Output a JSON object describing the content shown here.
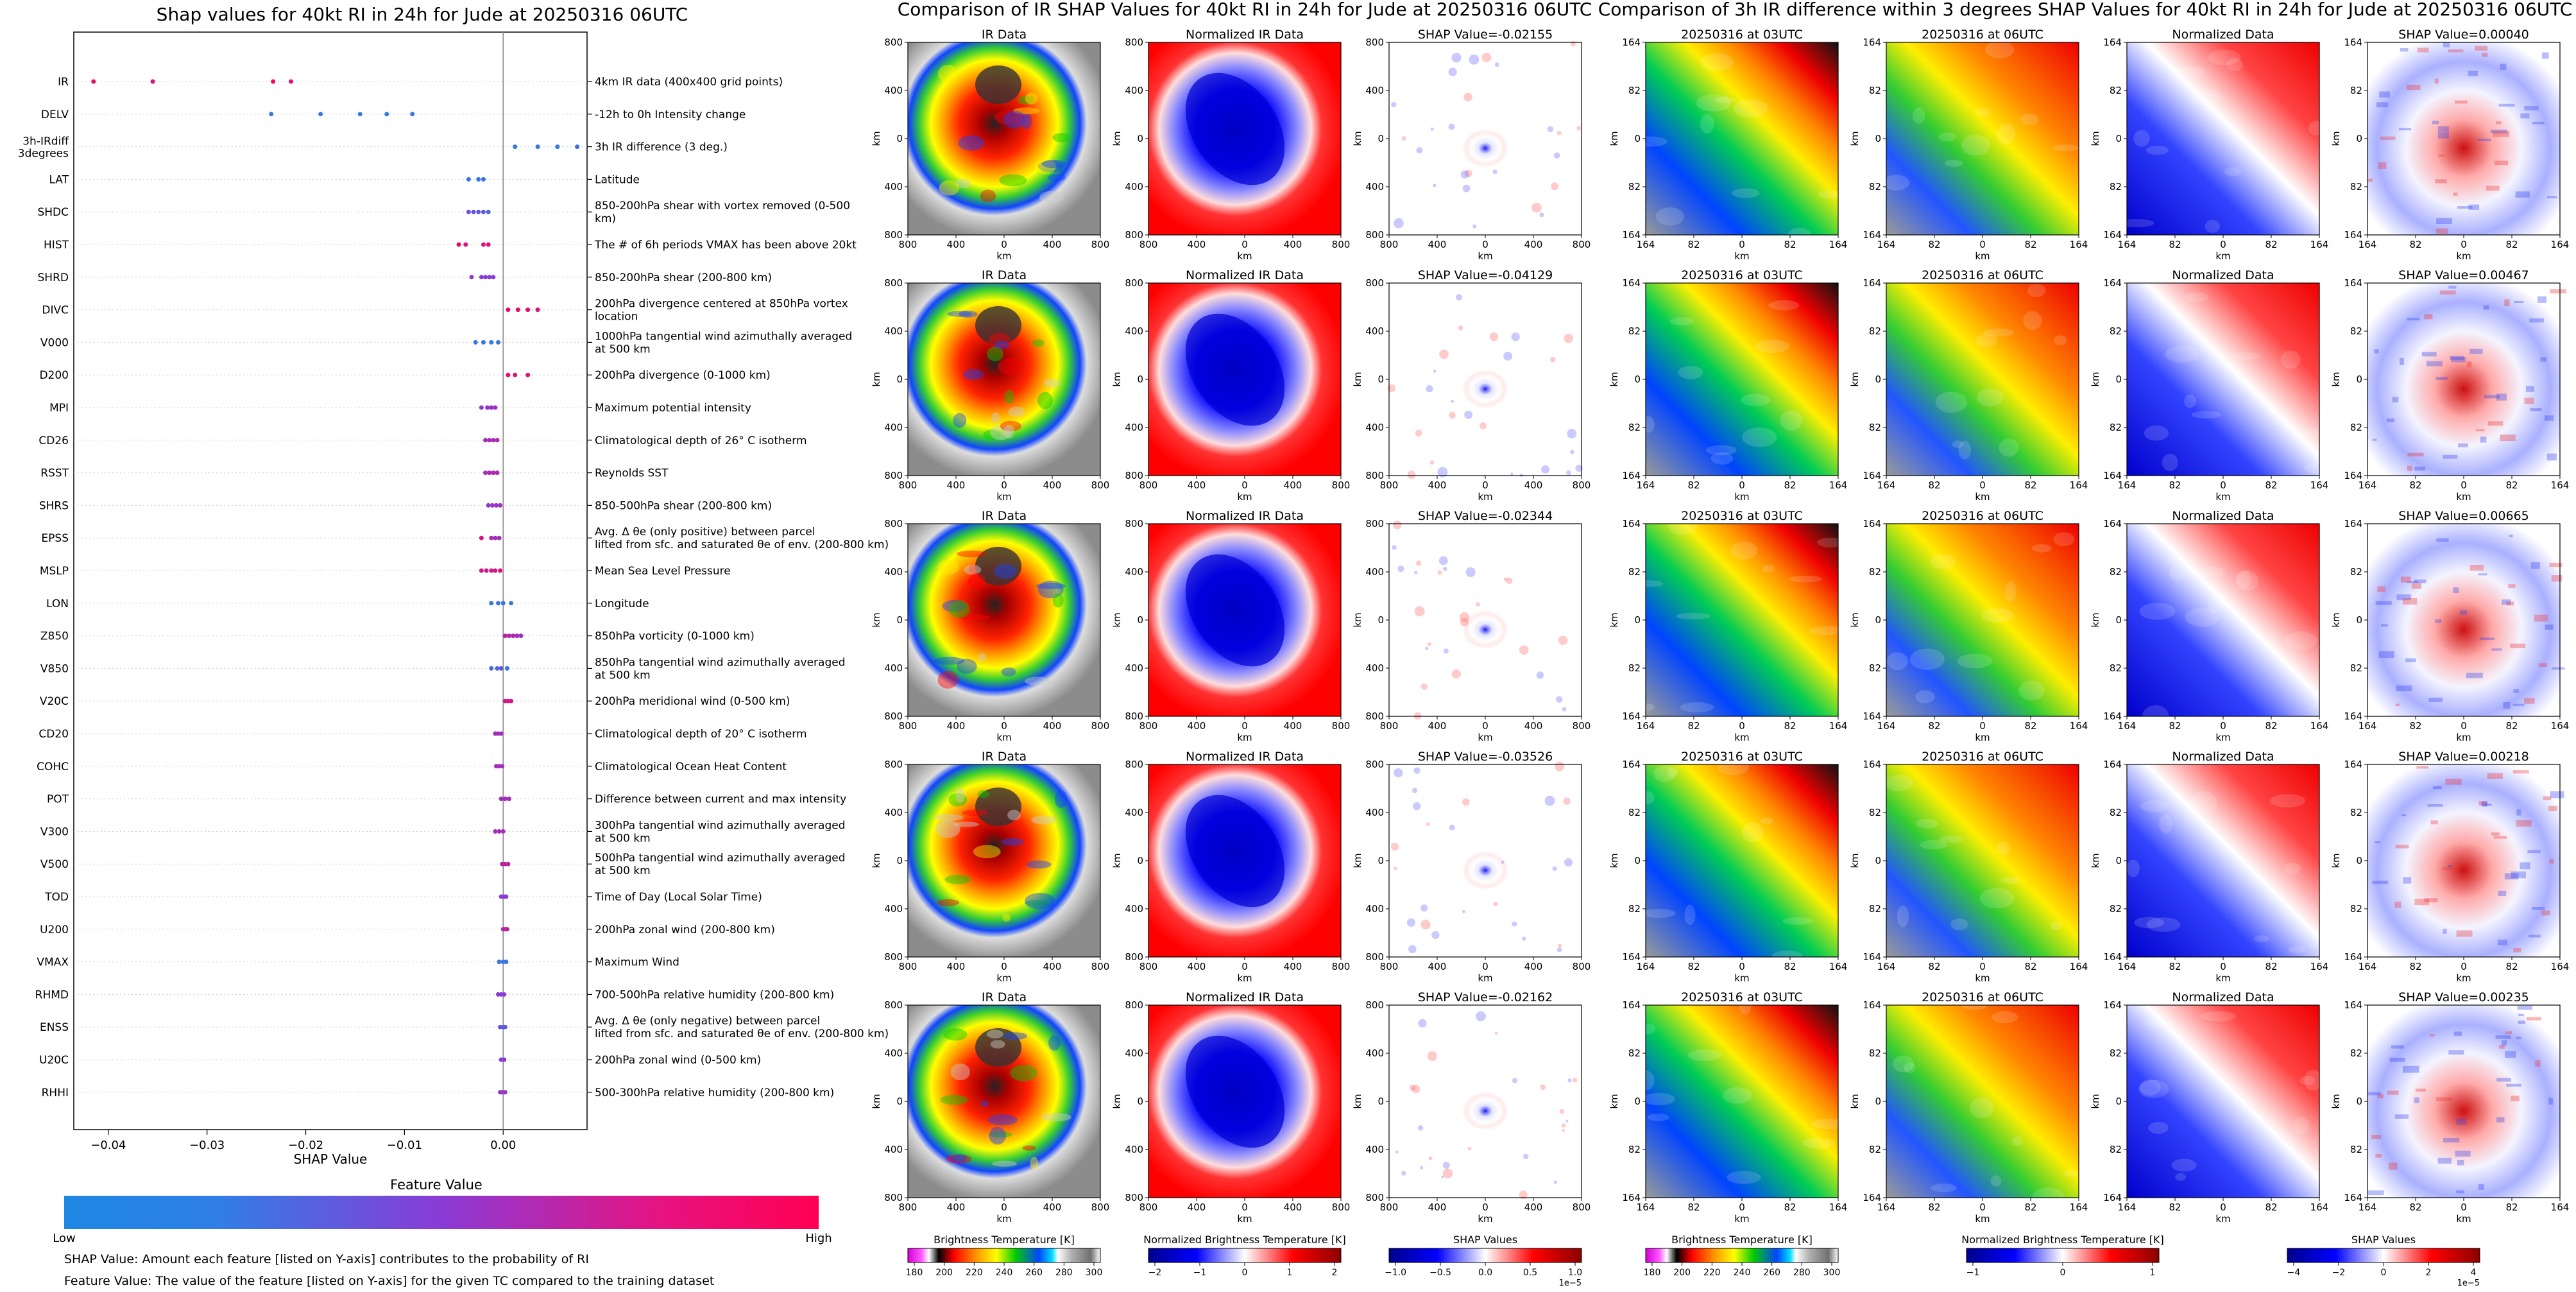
{
  "colors": {
    "feature_low": "#1e88e5",
    "feature_high": "#ff0052",
    "zero_line": "#888888",
    "ir_stops": [
      "#d400d4",
      "#ffffff",
      "#000000",
      "#ff0000",
      "#ff9900",
      "#ffff00",
      "#00cc00",
      "#0044ff",
      "#ffffff",
      "#9a9a9a",
      "#ffffff"
    ],
    "norm_stops": [
      "#00008c",
      "#0000ff",
      "#ffffff",
      "#ff0000",
      "#8c0000"
    ],
    "shap_stops": [
      "#00008c",
      "#0000ff",
      "#ffffff",
      "#ff0000",
      "#8c0000"
    ]
  },
  "left_panel": {
    "title": "Shap values for 40kt RI in 24h for Jude at 20250316 06UTC",
    "xlabel": "SHAP Value",
    "colorbar_title": "Feature Value",
    "colorbar_low": "Low",
    "colorbar_high": "High",
    "note1": "SHAP Value: Amount each feature [listed on Y-axis] contributes to the probability of RI",
    "note2": "Feature Value: The value of the feature [listed on Y-axis] for the given TC compared to the training dataset"
  },
  "chart_data": [
    {
      "type": "scatter",
      "title": "Shap values for 40kt RI in 24h for Jude at 20250316 06UTC",
      "xlabel": "SHAP Value",
      "xlim": [
        -0.0435,
        0.0085
      ],
      "xticks": [
        -0.04,
        -0.03,
        -0.02,
        -0.01,
        0.0
      ],
      "xticklabels": [
        "−0.04",
        "−0.03",
        "−0.02",
        "−0.01",
        "0.00"
      ],
      "colorbar": {
        "label": "Feature Value",
        "low": "Low",
        "high": "High"
      },
      "features": [
        {
          "code": "IR",
          "desc": "4km IR data (400x400 grid points)",
          "points": [
            [
              -0.0415,
              0.9
            ],
            [
              -0.0355,
              0.85
            ],
            [
              -0.0233,
              0.95
            ],
            [
              -0.0215,
              0.9
            ]
          ]
        },
        {
          "code": "DELV",
          "desc": "-12h to 0h Intensity change",
          "points": [
            [
              -0.0235,
              0.1
            ],
            [
              -0.0185,
              0.1
            ],
            [
              -0.0145,
              0.1
            ],
            [
              -0.0118,
              0.1
            ],
            [
              -0.0092,
              0.1
            ]
          ]
        },
        {
          "code": "3h-IRdiff 3degrees",
          "desc": "3h IR difference (3 deg.)",
          "points": [
            [
              0.0012,
              0.1
            ],
            [
              0.0035,
              0.1
            ],
            [
              0.0055,
              0.1
            ],
            [
              0.0075,
              0.15
            ]
          ]
        },
        {
          "code": "LAT",
          "desc": "Latitude",
          "points": [
            [
              -0.0035,
              0.1
            ],
            [
              -0.0025,
              0.1
            ],
            [
              -0.002,
              0.15
            ]
          ]
        },
        {
          "code": "SHDC",
          "desc": "850-200hPa shear with vortex removed (0-500 km)",
          "points": [
            [
              -0.0035,
              0.35
            ],
            [
              -0.003,
              0.35
            ],
            [
              -0.0025,
              0.3
            ],
            [
              -0.002,
              0.3
            ],
            [
              -0.0015,
              0.25
            ]
          ]
        },
        {
          "code": "HIST",
          "desc": "The # of 6h periods VMAX has been above 20kt",
          "points": [
            [
              -0.0045,
              0.9
            ],
            [
              -0.0038,
              0.85
            ],
            [
              -0.002,
              0.85
            ],
            [
              -0.0015,
              0.85
            ]
          ]
        },
        {
          "code": "SHRD",
          "desc": "850-200hPa shear (200-800 km)",
          "points": [
            [
              -0.0032,
              0.55
            ],
            [
              -0.0022,
              0.5
            ],
            [
              -0.0018,
              0.5
            ],
            [
              -0.0014,
              0.5
            ],
            [
              -0.001,
              0.5
            ]
          ]
        },
        {
          "code": "DIVC",
          "desc": "200hPa divergence centered at 850hPa vortex location",
          "points": [
            [
              0.0005,
              0.9
            ],
            [
              0.0015,
              0.9
            ],
            [
              0.0025,
              0.9
            ],
            [
              0.0035,
              0.85
            ]
          ]
        },
        {
          "code": "V000",
          "desc": "1000hPa tangential wind azimuthally averaged at 500 km",
          "points": [
            [
              -0.0028,
              0.1
            ],
            [
              -0.002,
              0.1
            ],
            [
              -0.0012,
              0.1
            ],
            [
              -0.0005,
              0.1
            ]
          ]
        },
        {
          "code": "D200",
          "desc": "200hPa divergence (0-1000 km)",
          "points": [
            [
              0.0005,
              0.9
            ],
            [
              0.0012,
              0.85
            ],
            [
              0.0025,
              0.85
            ]
          ]
        },
        {
          "code": "MPI",
          "desc": "Maximum potential intensity",
          "points": [
            [
              -0.0022,
              0.5
            ],
            [
              -0.0016,
              0.55
            ],
            [
              -0.0012,
              0.55
            ],
            [
              -0.0008,
              0.6
            ]
          ]
        },
        {
          "code": "CD26",
          "desc": "Climatological depth of 26° C isotherm",
          "points": [
            [
              -0.0018,
              0.6
            ],
            [
              -0.0014,
              0.6
            ],
            [
              -0.001,
              0.65
            ],
            [
              -0.0006,
              0.65
            ]
          ]
        },
        {
          "code": "RSST",
          "desc": "Reynolds SST",
          "points": [
            [
              -0.0018,
              0.6
            ],
            [
              -0.0014,
              0.6
            ],
            [
              -0.001,
              0.65
            ],
            [
              -0.0006,
              0.65
            ]
          ]
        },
        {
          "code": "SHRS",
          "desc": "850-500hPa shear (200-800 km)",
          "points": [
            [
              -0.0015,
              0.55
            ],
            [
              -0.0011,
              0.55
            ],
            [
              -0.0007,
              0.55
            ],
            [
              -0.0003,
              0.6
            ]
          ]
        },
        {
          "code": "EPSS",
          "desc": "Avg. Δ θe (only positive) between parcel lifted from sfc. and saturated θe of env. (200-800 km)",
          "points": [
            [
              -0.0022,
              0.85
            ],
            [
              -0.0012,
              0.6
            ],
            [
              -0.0008,
              0.6
            ],
            [
              -0.0004,
              0.6
            ]
          ]
        },
        {
          "code": "MSLP",
          "desc": "Mean Sea Level Pressure",
          "points": [
            [
              -0.0022,
              0.8
            ],
            [
              -0.0017,
              0.8
            ],
            [
              -0.0012,
              0.8
            ],
            [
              -0.0008,
              0.8
            ],
            [
              -0.0003,
              0.85
            ]
          ]
        },
        {
          "code": "LON",
          "desc": "Longitude",
          "points": [
            [
              -0.0012,
              0.1
            ],
            [
              -0.0005,
              0.15
            ],
            [
              0.0,
              0.1
            ],
            [
              0.0008,
              0.1
            ]
          ]
        },
        {
          "code": "Z850",
          "desc": "850hPa vorticity (0-1000 km)",
          "points": [
            [
              0.0002,
              0.7
            ],
            [
              0.0006,
              0.65
            ],
            [
              0.001,
              0.65
            ],
            [
              0.0014,
              0.6
            ],
            [
              0.0018,
              0.6
            ]
          ]
        },
        {
          "code": "V850",
          "desc": "850hPa tangential wind azimuthally averaged at 500 km",
          "points": [
            [
              -0.0012,
              0.2
            ],
            [
              -0.0006,
              0.25
            ],
            [
              -0.0002,
              0.3
            ],
            [
              0.0004,
              0.15
            ]
          ]
        },
        {
          "code": "V20C",
          "desc": "200hPa meridional wind (0-500 km)",
          "points": [
            [
              0.0002,
              0.8
            ],
            [
              0.0005,
              0.8
            ],
            [
              0.0008,
              0.8
            ]
          ]
        },
        {
          "code": "CD20",
          "desc": "Climatological depth of 20° C isotherm",
          "points": [
            [
              -0.0008,
              0.6
            ],
            [
              -0.0005,
              0.6
            ],
            [
              -0.0002,
              0.6
            ]
          ]
        },
        {
          "code": "COHC",
          "desc": "Climatological Ocean Heat Content",
          "points": [
            [
              -0.0007,
              0.6
            ],
            [
              -0.0004,
              0.6
            ],
            [
              -0.0001,
              0.6
            ]
          ]
        },
        {
          "code": "POT",
          "desc": "Difference between current and max intensity",
          "points": [
            [
              -0.0002,
              0.6
            ],
            [
              0.0002,
              0.6
            ],
            [
              0.0006,
              0.6
            ]
          ]
        },
        {
          "code": "V300",
          "desc": "300hPa tangential wind azimuthally averaged at 500 km",
          "points": [
            [
              -0.0008,
              0.6
            ],
            [
              -0.0004,
              0.6
            ],
            [
              0.0,
              0.6
            ]
          ]
        },
        {
          "code": "V500",
          "desc": "500hPa tangential wind azimuthally averaged at 500 km",
          "points": [
            [
              -0.0001,
              0.7
            ],
            [
              0.0002,
              0.7
            ],
            [
              0.0005,
              0.7
            ]
          ]
        },
        {
          "code": "TOD",
          "desc": "Time of Day (Local Solar Time)",
          "points": [
            [
              -0.0002,
              0.5
            ],
            [
              0.0001,
              0.5
            ],
            [
              0.0003,
              0.5
            ]
          ]
        },
        {
          "code": "U200",
          "desc": "200hPa zonal wind (200-800 km)",
          "points": [
            [
              0.0,
              0.7
            ],
            [
              0.0002,
              0.7
            ],
            [
              0.0004,
              0.7
            ]
          ]
        },
        {
          "code": "VMAX",
          "desc": "Maximum Wind",
          "points": [
            [
              -0.0004,
              0.15
            ],
            [
              0.0,
              0.15
            ],
            [
              0.0003,
              0.15
            ]
          ]
        },
        {
          "code": "RHMD",
          "desc": "700-500hPa relative humidity (200-800 km)",
          "points": [
            [
              -0.0005,
              0.5
            ],
            [
              -0.0002,
              0.5
            ],
            [
              0.0001,
              0.5
            ]
          ]
        },
        {
          "code": "ENSS",
          "desc": "Avg. Δ θe (only negative) between parcel lifted from sfc. and saturated θe of env. (200-800 km)",
          "points": [
            [
              -0.0003,
              0.3
            ],
            [
              0.0,
              0.3
            ],
            [
              0.0002,
              0.3
            ]
          ]
        },
        {
          "code": "U20C",
          "desc": "200hPa zonal wind (0-500 km)",
          "points": [
            [
              -0.0002,
              0.5
            ],
            [
              0.0001,
              0.5
            ]
          ]
        },
        {
          "code": "RHHI",
          "desc": "500-300hPa relative humidity (200-800 km)",
          "points": [
            [
              -0.0003,
              0.55
            ],
            [
              -0.0001,
              0.55
            ],
            [
              0.0002,
              0.55
            ]
          ]
        }
      ]
    },
    {
      "type": "heatmap",
      "title": "Comparison of IR SHAP Values for 40kt RI in 24h for Jude at 20250316 06UTC",
      "panels": [
        "IR Data",
        "Normalized IR Data",
        "SHAP Value"
      ],
      "shap_values": [
        "-0.02155",
        "-0.04129",
        "-0.02344",
        "-0.03526",
        "-0.02162"
      ],
      "axis_label": "km",
      "xticks": [
        "800",
        "400",
        "0",
        "400",
        "800"
      ],
      "yticks": [
        "800",
        "400",
        "0",
        "400",
        "800"
      ]
    },
    {
      "type": "heatmap",
      "title": "Comparison of 3h IR difference within 3 degrees SHAP Values for 40kt RI in 24h for Jude at 20250316 06UTC",
      "panels": [
        "20250316 at 03UTC",
        "20250316 at 06UTC",
        "Normalized Data",
        "SHAP Value"
      ],
      "shap_values": [
        "0.00040",
        "0.00467",
        "0.00665",
        "0.00218",
        "0.00235"
      ],
      "axis_label": "km",
      "xticks": [
        "164",
        "82",
        "0",
        "82",
        "164"
      ],
      "yticks": [
        "164",
        "82",
        "0",
        "82",
        "164"
      ]
    }
  ],
  "ir_section": {
    "title": "Comparison of IR SHAP Values for 40kt RI in 24h for Jude at 20250316 06UTC",
    "panel_titles": [
      "IR Data",
      "Normalized IR Data",
      "SHAP Value="
    ],
    "axis_label": "km",
    "ticks": [
      "800",
      "400",
      "0",
      "400",
      "800"
    ],
    "rows": [
      {
        "shap": "-0.02155"
      },
      {
        "shap": "-0.04129"
      },
      {
        "shap": "-0.02344"
      },
      {
        "shap": "-0.03526"
      },
      {
        "shap": "-0.02162"
      }
    ],
    "colorbars": [
      {
        "label": "Brightness Temperature [K]",
        "ticks": [
          "180",
          "200",
          "220",
          "240",
          "260",
          "280",
          "300"
        ],
        "exp": ""
      },
      {
        "label": "Normalized Brightness Temperature [K]",
        "ticks": [
          "−2",
          "−1",
          "0",
          "1",
          "2"
        ],
        "exp": ""
      },
      {
        "label": "SHAP Values",
        "ticks": [
          "−1.0",
          "−0.5",
          "0.0",
          "0.5",
          "1.0"
        ],
        "exp": "1e−5"
      }
    ]
  },
  "diff_section": {
    "title": "Comparison of 3h IR difference within 3 degrees SHAP Values for 40kt RI in 24h for Jude at 20250316 06UTC",
    "panel_titles": [
      "20250316 at 03UTC",
      "20250316 at 06UTC",
      "Normalized Data",
      "SHAP Value="
    ],
    "axis_label": "km",
    "ticks": [
      "164",
      "82",
      "0",
      "82",
      "164"
    ],
    "rows": [
      {
        "shap": "0.00040"
      },
      {
        "shap": "0.00467"
      },
      {
        "shap": "0.00665"
      },
      {
        "shap": "0.00218"
      },
      {
        "shap": "0.00235"
      }
    ],
    "colorbars": [
      {
        "label": "Brightness Temperature [K]",
        "ticks": [
          "180",
          "200",
          "220",
          "240",
          "260",
          "280",
          "300"
        ],
        "exp": ""
      },
      {
        "label": "Normalized Brightness Temperature [K]",
        "ticks": [
          "−1",
          "0",
          "1"
        ],
        "exp": ""
      },
      {
        "label": "SHAP Values",
        "ticks": [
          "−4",
          "−2",
          "0",
          "2",
          "4"
        ],
        "exp": "1e−5"
      }
    ]
  }
}
